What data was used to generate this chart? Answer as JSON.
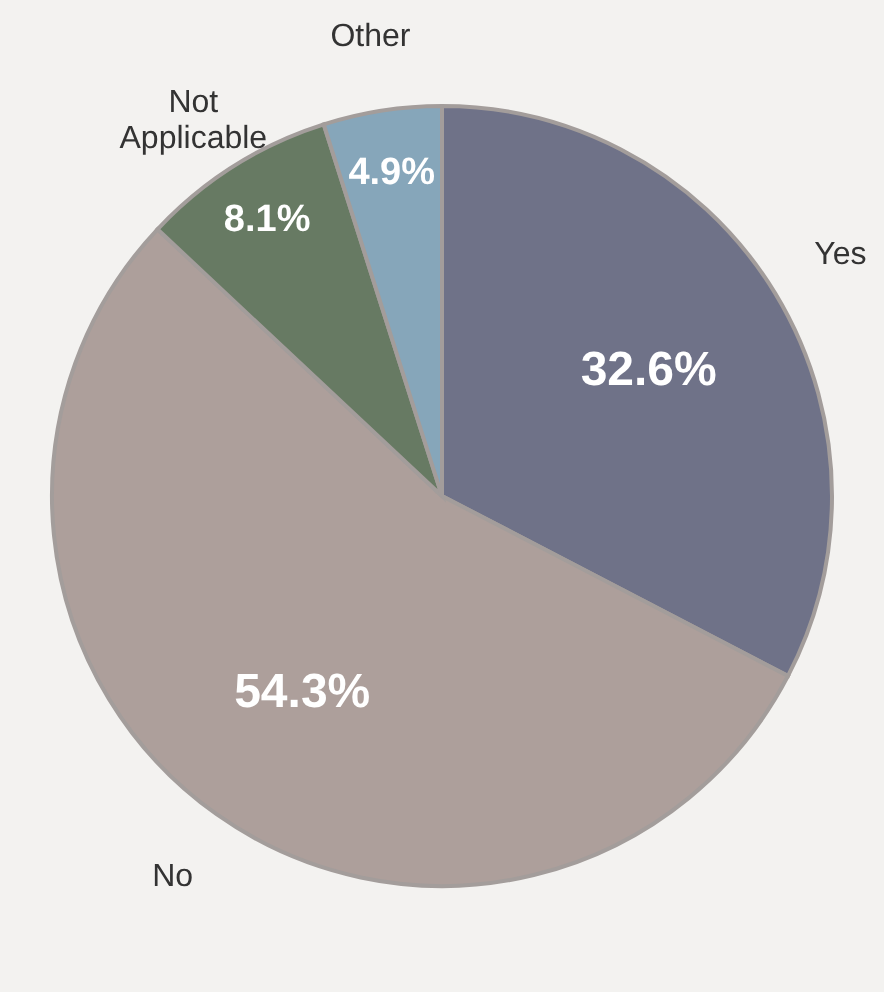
{
  "chart_data": {
    "type": "pie",
    "categories": [
      "Yes",
      "No",
      "Not Applicable",
      "Other"
    ],
    "values": [
      32.6,
      54.3,
      8.1,
      4.9
    ],
    "value_labels": [
      "32.6%",
      "54.3%",
      "8.1%",
      "4.9%"
    ],
    "colors": [
      "#6f7288",
      "#ad9f9b",
      "#677a63",
      "#86a6ba"
    ]
  }
}
